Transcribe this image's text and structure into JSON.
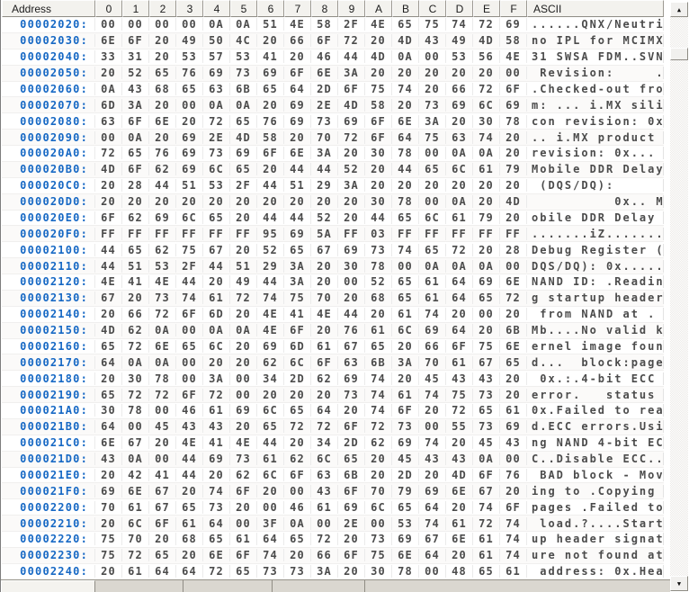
{
  "header": {
    "address_label": "Address",
    "byte_columns": [
      "0",
      "1",
      "2",
      "3",
      "4",
      "5",
      "6",
      "7",
      "8",
      "9",
      "A",
      "B",
      "C",
      "D",
      "E",
      "F"
    ],
    "ascii_label": "ASCII"
  },
  "hex_rows": [
    {
      "address": "00002020:",
      "bytes": [
        "00",
        "00",
        "00",
        "00",
        "0A",
        "0A",
        "51",
        "4E",
        "58",
        "2F",
        "4E",
        "65",
        "75",
        "74",
        "72",
        "69"
      ],
      "ascii": "......QNX/Neutri"
    },
    {
      "address": "00002030:",
      "bytes": [
        "6E",
        "6F",
        "20",
        "49",
        "50",
        "4C",
        "20",
        "66",
        "6F",
        "72",
        "20",
        "4D",
        "43",
        "49",
        "4D",
        "58"
      ],
      "ascii": "no IPL for MCIMX"
    },
    {
      "address": "00002040:",
      "bytes": [
        "33",
        "31",
        "20",
        "53",
        "57",
        "53",
        "41",
        "20",
        "46",
        "44",
        "4D",
        "0A",
        "00",
        "53",
        "56",
        "4E"
      ],
      "ascii": "31 SWSA FDM..SVN"
    },
    {
      "address": "00002050:",
      "bytes": [
        "20",
        "52",
        "65",
        "76",
        "69",
        "73",
        "69",
        "6F",
        "6E",
        "3A",
        "20",
        "20",
        "20",
        "20",
        "20",
        "00"
      ],
      "ascii": " Revision:     ."
    },
    {
      "address": "00002060:",
      "bytes": [
        "0A",
        "43",
        "68",
        "65",
        "63",
        "6B",
        "65",
        "64",
        "2D",
        "6F",
        "75",
        "74",
        "20",
        "66",
        "72",
        "6F"
      ],
      "ascii": ".Checked-out fro"
    },
    {
      "address": "00002070:",
      "bytes": [
        "6D",
        "3A",
        "20",
        "00",
        "0A",
        "0A",
        "20",
        "69",
        "2E",
        "4D",
        "58",
        "20",
        "73",
        "69",
        "6C",
        "69"
      ],
      "ascii": "m: ... i.MX sili"
    },
    {
      "address": "00002080:",
      "bytes": [
        "63",
        "6F",
        "6E",
        "20",
        "72",
        "65",
        "76",
        "69",
        "73",
        "69",
        "6F",
        "6E",
        "3A",
        "20",
        "30",
        "78"
      ],
      "ascii": "con revision: 0x"
    },
    {
      "address": "00002090:",
      "bytes": [
        "00",
        "0A",
        "20",
        "69",
        "2E",
        "4D",
        "58",
        "20",
        "70",
        "72",
        "6F",
        "64",
        "75",
        "63",
        "74",
        "20"
      ],
      "ascii": ".. i.MX product "
    },
    {
      "address": "000020A0:",
      "bytes": [
        "72",
        "65",
        "76",
        "69",
        "73",
        "69",
        "6F",
        "6E",
        "3A",
        "20",
        "30",
        "78",
        "00",
        "0A",
        "0A",
        "20"
      ],
      "ascii": "revision: 0x... "
    },
    {
      "address": "000020B0:",
      "bytes": [
        "4D",
        "6F",
        "62",
        "69",
        "6C",
        "65",
        "20",
        "44",
        "44",
        "52",
        "20",
        "44",
        "65",
        "6C",
        "61",
        "79"
      ],
      "ascii": "Mobile DDR Delay"
    },
    {
      "address": "000020C0:",
      "bytes": [
        "20",
        "28",
        "44",
        "51",
        "53",
        "2F",
        "44",
        "51",
        "29",
        "3A",
        "20",
        "20",
        "20",
        "20",
        "20",
        "20"
      ],
      "ascii": " (DQS/DQ):      "
    },
    {
      "address": "000020D0:",
      "bytes": [
        "20",
        "20",
        "20",
        "20",
        "20",
        "20",
        "20",
        "20",
        "20",
        "20",
        "30",
        "78",
        "00",
        "0A",
        "20",
        "4D"
      ],
      "ascii": "          0x.. M"
    },
    {
      "address": "000020E0:",
      "bytes": [
        "6F",
        "62",
        "69",
        "6C",
        "65",
        "20",
        "44",
        "44",
        "52",
        "20",
        "44",
        "65",
        "6C",
        "61",
        "79",
        "20"
      ],
      "ascii": "obile DDR Delay "
    },
    {
      "address": "000020F0:",
      "bytes": [
        "FF",
        "FF",
        "FF",
        "FF",
        "FF",
        "FF",
        "95",
        "69",
        "5A",
        "FF",
        "03",
        "FF",
        "FF",
        "FF",
        "FF",
        "FF"
      ],
      "ascii": ".......iZ......."
    },
    {
      "address": "00002100:",
      "bytes": [
        "44",
        "65",
        "62",
        "75",
        "67",
        "20",
        "52",
        "65",
        "67",
        "69",
        "73",
        "74",
        "65",
        "72",
        "20",
        "28"
      ],
      "ascii": "Debug Register ("
    },
    {
      "address": "00002110:",
      "bytes": [
        "44",
        "51",
        "53",
        "2F",
        "44",
        "51",
        "29",
        "3A",
        "20",
        "30",
        "78",
        "00",
        "0A",
        "0A",
        "0A",
        "00"
      ],
      "ascii": "DQS/DQ): 0x....."
    },
    {
      "address": "00002120:",
      "bytes": [
        "4E",
        "41",
        "4E",
        "44",
        "20",
        "49",
        "44",
        "3A",
        "20",
        "00",
        "52",
        "65",
        "61",
        "64",
        "69",
        "6E"
      ],
      "ascii": "NAND ID: .Readin"
    },
    {
      "address": "00002130:",
      "bytes": [
        "67",
        "20",
        "73",
        "74",
        "61",
        "72",
        "74",
        "75",
        "70",
        "20",
        "68",
        "65",
        "61",
        "64",
        "65",
        "72"
      ],
      "ascii": "g startup header"
    },
    {
      "address": "00002140:",
      "bytes": [
        "20",
        "66",
        "72",
        "6F",
        "6D",
        "20",
        "4E",
        "41",
        "4E",
        "44",
        "20",
        "61",
        "74",
        "20",
        "00",
        "20"
      ],
      "ascii": " from NAND at . "
    },
    {
      "address": "00002150:",
      "bytes": [
        "4D",
        "62",
        "0A",
        "00",
        "0A",
        "0A",
        "4E",
        "6F",
        "20",
        "76",
        "61",
        "6C",
        "69",
        "64",
        "20",
        "6B"
      ],
      "ascii": "Mb....No valid k"
    },
    {
      "address": "00002160:",
      "bytes": [
        "65",
        "72",
        "6E",
        "65",
        "6C",
        "20",
        "69",
        "6D",
        "61",
        "67",
        "65",
        "20",
        "66",
        "6F",
        "75",
        "6E"
      ],
      "ascii": "ernel image foun"
    },
    {
      "address": "00002170:",
      "bytes": [
        "64",
        "0A",
        "0A",
        "00",
        "20",
        "20",
        "62",
        "6C",
        "6F",
        "63",
        "6B",
        "3A",
        "70",
        "61",
        "67",
        "65"
      ],
      "ascii": "d...  block:page"
    },
    {
      "address": "00002180:",
      "bytes": [
        "20",
        "30",
        "78",
        "00",
        "3A",
        "00",
        "34",
        "2D",
        "62",
        "69",
        "74",
        "20",
        "45",
        "43",
        "43",
        "20"
      ],
      "ascii": " 0x.:.4-bit ECC "
    },
    {
      "address": "00002190:",
      "bytes": [
        "65",
        "72",
        "72",
        "6F",
        "72",
        "00",
        "20",
        "20",
        "20",
        "73",
        "74",
        "61",
        "74",
        "75",
        "73",
        "20"
      ],
      "ascii": "error.   status "
    },
    {
      "address": "000021A0:",
      "bytes": [
        "30",
        "78",
        "00",
        "46",
        "61",
        "69",
        "6C",
        "65",
        "64",
        "20",
        "74",
        "6F",
        "20",
        "72",
        "65",
        "61"
      ],
      "ascii": "0x.Failed to rea"
    },
    {
      "address": "000021B0:",
      "bytes": [
        "64",
        "00",
        "45",
        "43",
        "43",
        "20",
        "65",
        "72",
        "72",
        "6F",
        "72",
        "73",
        "00",
        "55",
        "73",
        "69"
      ],
      "ascii": "d.ECC errors.Usi"
    },
    {
      "address": "000021C0:",
      "bytes": [
        "6E",
        "67",
        "20",
        "4E",
        "41",
        "4E",
        "44",
        "20",
        "34",
        "2D",
        "62",
        "69",
        "74",
        "20",
        "45",
        "43"
      ],
      "ascii": "ng NAND 4-bit EC"
    },
    {
      "address": "000021D0:",
      "bytes": [
        "43",
        "0A",
        "00",
        "44",
        "69",
        "73",
        "61",
        "62",
        "6C",
        "65",
        "20",
        "45",
        "43",
        "43",
        "0A",
        "00"
      ],
      "ascii": "C..Disable ECC.."
    },
    {
      "address": "000021E0:",
      "bytes": [
        "20",
        "42",
        "41",
        "44",
        "20",
        "62",
        "6C",
        "6F",
        "63",
        "6B",
        "20",
        "2D",
        "20",
        "4D",
        "6F",
        "76"
      ],
      "ascii": " BAD block - Mov"
    },
    {
      "address": "000021F0:",
      "bytes": [
        "69",
        "6E",
        "67",
        "20",
        "74",
        "6F",
        "20",
        "00",
        "43",
        "6F",
        "70",
        "79",
        "69",
        "6E",
        "67",
        "20"
      ],
      "ascii": "ing to .Copying "
    },
    {
      "address": "00002200:",
      "bytes": [
        "70",
        "61",
        "67",
        "65",
        "73",
        "20",
        "00",
        "46",
        "61",
        "69",
        "6C",
        "65",
        "64",
        "20",
        "74",
        "6F"
      ],
      "ascii": "pages .Failed to"
    },
    {
      "address": "00002210:",
      "bytes": [
        "20",
        "6C",
        "6F",
        "61",
        "64",
        "00",
        "3F",
        "0A",
        "00",
        "2E",
        "00",
        "53",
        "74",
        "61",
        "72",
        "74"
      ],
      "ascii": " load.?....Start"
    },
    {
      "address": "00002220:",
      "bytes": [
        "75",
        "70",
        "20",
        "68",
        "65",
        "61",
        "64",
        "65",
        "72",
        "20",
        "73",
        "69",
        "67",
        "6E",
        "61",
        "74"
      ],
      "ascii": "up header signat"
    },
    {
      "address": "00002230:",
      "bytes": [
        "75",
        "72",
        "65",
        "20",
        "6E",
        "6F",
        "74",
        "20",
        "66",
        "6F",
        "75",
        "6E",
        "64",
        "20",
        "61",
        "74"
      ],
      "ascii": "ure not found at"
    },
    {
      "address": "00002240:",
      "bytes": [
        "20",
        "61",
        "64",
        "64",
        "72",
        "65",
        "73",
        "73",
        "3A",
        "20",
        "30",
        "78",
        "00",
        "48",
        "65",
        "61"
      ],
      "ascii": " address: 0x.Hea"
    }
  ],
  "scrollbar": {
    "up_arrow": "▲",
    "down_arrow": "▼"
  },
  "bottom_tabs": [
    {
      "label": ""
    },
    {
      "label": ""
    },
    {
      "label": ""
    },
    {
      "label": ""
    }
  ],
  "colors": {
    "address_text": "#1668C4",
    "hex_text": "#4B4B4B",
    "ascii_text": "#4B4B4B",
    "header_bg": "#F3F2EE",
    "grid_line": "#EBEBEB",
    "scrollbar_face": "#F1F0EE",
    "tabbar_bg": "#DAD7D0"
  }
}
